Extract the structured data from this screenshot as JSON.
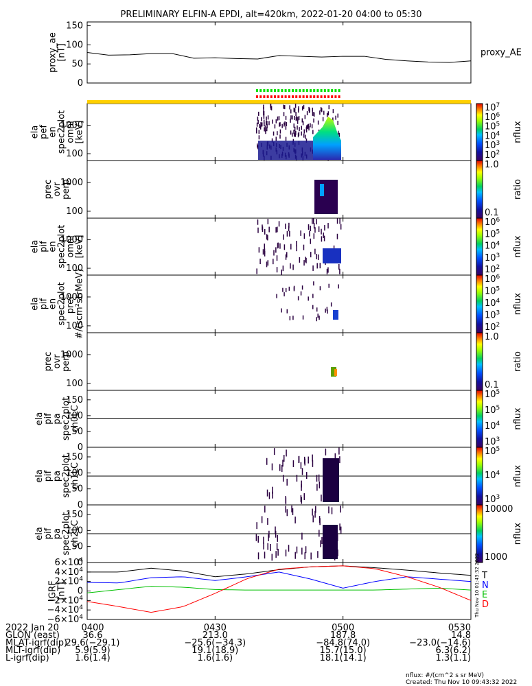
{
  "title": "PRELIMINARY ELFIN-A EPDI, alt=420km, 2022-01-20 04:00 to 05:30",
  "time_axis": {
    "ticks": [
      "0400",
      "0430",
      "0500",
      "0530"
    ],
    "minutes": [
      0,
      30,
      60,
      90
    ],
    "range_minutes": [
      0,
      90
    ]
  },
  "panels": [
    {
      "id": "proxy_ae",
      "ylabel": [
        "proxy_ae",
        "[nT]"
      ],
      "yticks": [
        "150",
        "100",
        "50",
        "0"
      ],
      "yrange": [
        0,
        160
      ],
      "right_label": "proxy_AE"
    },
    {
      "id": "pef-omni",
      "ylabel": [
        "ela",
        "pef",
        "en",
        "spec2plot",
        "omni",
        "[keV]"
      ],
      "yticks": [
        "1000",
        "100"
      ],
      "log": true,
      "colorbar": {
        "label": "nflux",
        "ticks": [
          "10",
          "10",
          "10",
          "10",
          "10",
          "10"
        ],
        "exps": [
          "7",
          "6",
          "5",
          "4",
          "3",
          "2"
        ]
      }
    },
    {
      "id": "pef-ratio",
      "ylabel": [
        "prec",
        "ovr",
        "perp"
      ],
      "yticks": [
        "1000",
        "100"
      ],
      "log": true,
      "colorbar": {
        "label": "ratio",
        "ticks": [
          "1.0",
          "0.1"
        ],
        "exps": [
          "",
          ""
        ]
      }
    },
    {
      "id": "pif-omni",
      "ylabel": [
        "ela",
        "pif",
        "en",
        "spec2plot",
        "omni",
        "[keV]"
      ],
      "yticks": [
        "1000",
        "100"
      ],
      "log": true,
      "colorbar": {
        "label": "nflux",
        "ticks": [
          "10",
          "10",
          "10",
          "10",
          "10"
        ],
        "exps": [
          "6",
          "5",
          "4",
          "3",
          "2"
        ]
      }
    },
    {
      "id": "pif-prec",
      "ylabel": [
        "ela",
        "pif",
        "en",
        "spec2plot",
        "prec",
        "#/(scm²strMeV)"
      ],
      "yticks": [
        "1000",
        "100"
      ],
      "log": true,
      "colorbar": {
        "label": "nflux",
        "ticks": [
          "10",
          "10",
          "10",
          "10",
          "10"
        ],
        "exps": [
          "6",
          "5",
          "4",
          "3",
          "2"
        ]
      }
    },
    {
      "id": "pif-ratio",
      "ylabel": [
        "prec",
        "ovr",
        "perp"
      ],
      "yticks": [
        "1000",
        "100"
      ],
      "log": true,
      "colorbar": {
        "label": "ratio",
        "ticks": [
          "1.0",
          "0.1"
        ],
        "exps": [
          "",
          ""
        ]
      }
    },
    {
      "id": "pif-pa-ch0",
      "ylabel": [
        "ela",
        "pif",
        "pa",
        "spec2plot",
        "ch0LC"
      ],
      "yticks": [
        "150",
        "100",
        "50",
        "0"
      ],
      "yrange": [
        0,
        180
      ],
      "colorbar": {
        "label": "nflux",
        "ticks": [
          "10",
          "10",
          "10",
          "10"
        ],
        "exps": [
          "5",
          "5",
          "4",
          "3"
        ]
      }
    },
    {
      "id": "pif-pa-ch1",
      "ylabel": [
        "ela",
        "pif",
        "pa",
        "spec2plot",
        "ch1LC"
      ],
      "yticks": [
        "150",
        "100",
        "50",
        "0"
      ],
      "yrange": [
        0,
        180
      ],
      "colorbar": {
        "label": "nflux",
        "ticks": [
          "10",
          "10",
          "10"
        ],
        "exps": [
          "5",
          "4",
          "3"
        ]
      }
    },
    {
      "id": "pif-pa-ch2",
      "ylabel": [
        "ela",
        "pif",
        "pa",
        "spec2plot",
        "ch2LC"
      ],
      "yticks": [
        "150",
        "100",
        "50",
        "0"
      ],
      "yrange": [
        0,
        180
      ],
      "colorbar": {
        "label": "nflux",
        "ticks": [
          "10000",
          "1000"
        ],
        "exps": [
          "",
          ""
        ]
      }
    },
    {
      "id": "igrf",
      "ylabel": [
        "IGRF",
        "[nT]"
      ],
      "yticks": [
        "6×10",
        "4×10",
        "2×10",
        "0",
        "−2×10",
        "−4×10",
        "−6×10"
      ],
      "ytick_exps": [
        "4",
        "4",
        "4",
        "",
        "4",
        "4",
        "4"
      ],
      "yrange": [
        -60000,
        60000
      ]
    }
  ],
  "igrf_legend": [
    "T",
    "N",
    "E",
    "D"
  ],
  "igrf_colors": {
    "T": "#000000",
    "N": "#0000ff",
    "E": "#00c000",
    "D": "#ff0000"
  },
  "stamp": "Thu Nov 10 01:43:32 2022",
  "footer": {
    "rows": [
      {
        "label": "2022 Jan 20",
        "values": [
          "0400",
          "0430",
          "0500",
          "0530"
        ]
      },
      {
        "label": "GLON (east)",
        "values": [
          "36.6",
          "213.0",
          "187.8",
          "14.8"
        ]
      },
      {
        "label": "MLAT-igrf(dip)",
        "values": [
          "29.6(−29.1)",
          "−25.6(−34.3)",
          "−84.8(74.0)",
          "−23.0(−14.6)"
        ]
      },
      {
        "label": "MLT-igrf(dip)",
        "values": [
          "5.9(5.9)",
          "19.1(18.9)",
          "15.7(15.0)",
          "6.3(6.2)"
        ]
      },
      {
        "label": "L-igrf(dip)",
        "values": [
          "1.6(1.4)",
          "1.6(1.6)",
          "18.1(14.1)",
          "1.3(1.1)"
        ]
      }
    ],
    "note_units": "nflux: #/(cm^2 s sr MeV)",
    "note_created": "Created: Thu Nov 10 09:43:32 2022"
  },
  "chart_data": {
    "type": "line",
    "title": "PRELIMINARY ELFIN-A EPDI, alt=420km, 2022-01-20 04:00 to 05:30",
    "x": [
      0,
      5,
      10,
      15,
      20,
      25,
      30,
      35,
      40,
      45,
      50,
      55,
      60,
      65,
      70,
      75,
      80,
      85,
      90
    ],
    "x_ticks": [
      "0400",
      "0430",
      "0500",
      "0530"
    ],
    "series": [
      {
        "name": "proxy_AE",
        "values": [
          80,
          73,
          74,
          77,
          77,
          65,
          66,
          64,
          63,
          72,
          70,
          68,
          70,
          70,
          62,
          58,
          55,
          54,
          58
        ]
      }
    ],
    "ylim": [
      0,
      160
    ],
    "igrf": {
      "x": [
        0,
        7.5,
        15,
        22.5,
        30,
        37.5,
        45,
        52.5,
        60,
        67.5,
        75,
        82.5,
        90
      ],
      "T": [
        40000,
        40000,
        48000,
        42000,
        30000,
        36000,
        45000,
        51000,
        53000,
        49000,
        44000,
        38000,
        33000
      ],
      "N": [
        18000,
        17000,
        28000,
        30000,
        22000,
        30000,
        40000,
        25000,
        6000,
        20000,
        30000,
        25000,
        20000
      ],
      "E": [
        -4000,
        3000,
        10000,
        8000,
        3000,
        2000,
        2000,
        2000,
        2000,
        2000,
        4000,
        6000,
        2000
      ],
      "D": [
        -22000,
        -33000,
        -45000,
        -33000,
        -5000,
        26000,
        46000,
        51000,
        53000,
        47000,
        30000,
        8000,
        -20000
      ]
    }
  }
}
